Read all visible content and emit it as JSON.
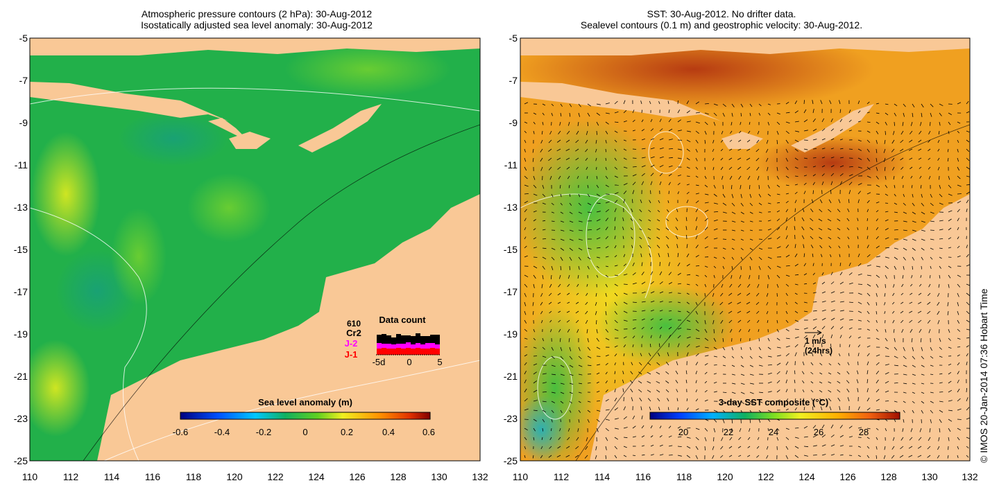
{
  "left_panel": {
    "title_line1": "Atmospheric pressure contours (2 hPa): 30-Aug-2012",
    "title_line2": "Isostatically adjusted sea level anomaly: 30-Aug-2012",
    "y_ticks": [
      "-5",
      "-7",
      "-9",
      "-11",
      "-13",
      "-15",
      "-17",
      "-19",
      "-21",
      "-23",
      "-25"
    ],
    "x_ticks": [
      "110",
      "112",
      "114",
      "116",
      "118",
      "120",
      "122",
      "124",
      "126",
      "128",
      "130",
      "132"
    ],
    "colorbar": {
      "title": "Sea level anomaly (m)",
      "tick_labels": [
        "-0.6",
        "-0.4",
        "-0.2",
        "0",
        "0.2",
        "0.4",
        "0.6"
      ]
    },
    "data_count": {
      "title": "Data count",
      "number": "610",
      "missions": [
        {
          "label": "Cr2",
          "color": "#000000"
        },
        {
          "label": "J-2",
          "color": "#ff00ff"
        },
        {
          "label": "J-1",
          "color": "#ff0000"
        }
      ],
      "axis_labels": [
        "-5d",
        "0",
        "5"
      ]
    }
  },
  "right_panel": {
    "title_line1": "SST: 30-Aug-2012. No drifter data.",
    "title_line2": "Sealevel contours (0.1 m) and geostrophic velocity: 30-Aug-2012.",
    "y_ticks": [
      "-5",
      "-7",
      "-9",
      "-11",
      "-13",
      "-15",
      "-17",
      "-19",
      "-21",
      "-23",
      "-25"
    ],
    "x_ticks": [
      "110",
      "112",
      "114",
      "116",
      "118",
      "120",
      "122",
      "124",
      "126",
      "128",
      "130",
      "132"
    ],
    "colorbar": {
      "title": "3-day SST composite (°C)",
      "tick_labels": [
        "20",
        "22",
        "24",
        "26",
        "28"
      ]
    },
    "velocity_key": {
      "line1": "1 m/s",
      "line2": "(24hrs)"
    }
  },
  "credit": "© IMOS 20-Jan-2014 07:36 Hobart Time",
  "colors": {
    "land": "#f9c896",
    "ocean_left": "#22b04a",
    "ocean_right": "#f0a020"
  }
}
